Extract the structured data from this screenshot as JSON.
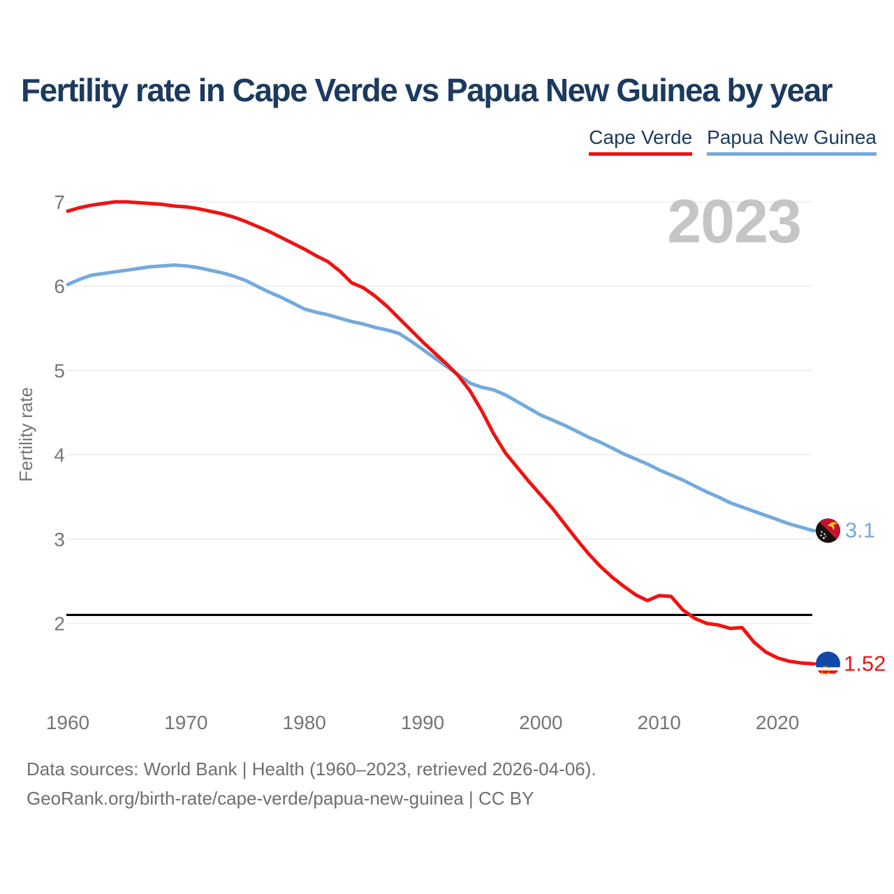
{
  "header": {
    "title": "Fertility rate in Cape Verde vs Papua New Guinea by year"
  },
  "legend": {
    "items": [
      {
        "label": "Cape Verde",
        "color": "#f01212"
      },
      {
        "label": "Papua New Guinea",
        "color": "#74aadd"
      }
    ]
  },
  "watermark": {
    "text": "2023"
  },
  "footer": {
    "line1": "Data sources: World Bank | Health (1960–2023, retrieved 2026-04-06).",
    "line2": "GeoRank.org/birth-rate/cape-verde/papua-new-guinea | CC BY"
  },
  "colors": {
    "background": "#ffffff",
    "title": "#1c3a5e",
    "axis_text": "#757575",
    "grid": "#ededed",
    "watermark": "#c5c5c5",
    "footer": "#6e6e6e",
    "reference_line": "#000000"
  },
  "chart_data": {
    "type": "line",
    "title": "Fertility rate in Cape Verde vs Papua New Guinea by year",
    "xlabel": "",
    "ylabel": "Fertility rate",
    "xlim": [
      1960,
      2023
    ],
    "ylim": [
      1.3,
      7.15
    ],
    "x_ticks": [
      1960,
      1970,
      1980,
      1990,
      2000,
      2010,
      2020
    ],
    "y_ticks": [
      2,
      3,
      4,
      5,
      6,
      7
    ],
    "grid": "horizontal",
    "legend_position": "top-right",
    "reference_line": {
      "value": 2.1
    },
    "x": [
      1960,
      1961,
      1962,
      1963,
      1964,
      1965,
      1966,
      1967,
      1968,
      1969,
      1970,
      1971,
      1972,
      1973,
      1974,
      1975,
      1976,
      1977,
      1978,
      1979,
      1980,
      1981,
      1982,
      1983,
      1984,
      1985,
      1986,
      1987,
      1988,
      1989,
      1990,
      1991,
      1992,
      1993,
      1994,
      1995,
      1996,
      1997,
      1998,
      1999,
      2000,
      2001,
      2002,
      2003,
      2004,
      2005,
      2006,
      2007,
      2008,
      2009,
      2010,
      2011,
      2012,
      2013,
      2014,
      2015,
      2016,
      2017,
      2018,
      2019,
      2020,
      2021,
      2022,
      2023
    ],
    "series": [
      {
        "name": "Cape Verde",
        "color": "#f01212",
        "end_label": "1.52",
        "end_value": 1.52,
        "flag": "cape-verde",
        "values": [
          6.89,
          6.93,
          6.96,
          6.98,
          7.0,
          7.0,
          6.99,
          6.98,
          6.97,
          6.95,
          6.94,
          6.92,
          6.89,
          6.86,
          6.82,
          6.77,
          6.71,
          6.65,
          6.58,
          6.51,
          6.44,
          6.36,
          6.29,
          6.18,
          6.04,
          5.98,
          5.88,
          5.76,
          5.62,
          5.48,
          5.34,
          5.21,
          5.08,
          4.94,
          4.76,
          4.52,
          4.25,
          4.02,
          3.85,
          3.68,
          3.52,
          3.36,
          3.18,
          3.0,
          2.83,
          2.68,
          2.55,
          2.44,
          2.34,
          2.27,
          2.33,
          2.32,
          2.16,
          2.06,
          2.0,
          1.98,
          1.94,
          1.95,
          1.78,
          1.66,
          1.59,
          1.55,
          1.53,
          1.52
        ]
      },
      {
        "name": "Papua New Guinea",
        "color": "#74aadd",
        "end_label": "3.1",
        "end_value": 3.1,
        "flag": "papua-new-guinea",
        "values": [
          6.02,
          6.08,
          6.13,
          6.15,
          6.17,
          6.19,
          6.21,
          6.23,
          6.24,
          6.25,
          6.24,
          6.22,
          6.19,
          6.16,
          6.12,
          6.07,
          6.0,
          5.93,
          5.87,
          5.8,
          5.73,
          5.69,
          5.66,
          5.62,
          5.58,
          5.55,
          5.51,
          5.48,
          5.44,
          5.35,
          5.25,
          5.15,
          5.05,
          4.95,
          4.85,
          4.8,
          4.77,
          4.71,
          4.63,
          4.55,
          4.47,
          4.41,
          4.35,
          4.28,
          4.21,
          4.15,
          4.08,
          4.01,
          3.95,
          3.89,
          3.82,
          3.76,
          3.7,
          3.63,
          3.56,
          3.5,
          3.43,
          3.38,
          3.33,
          3.28,
          3.23,
          3.18,
          3.14,
          3.1
        ]
      }
    ]
  }
}
